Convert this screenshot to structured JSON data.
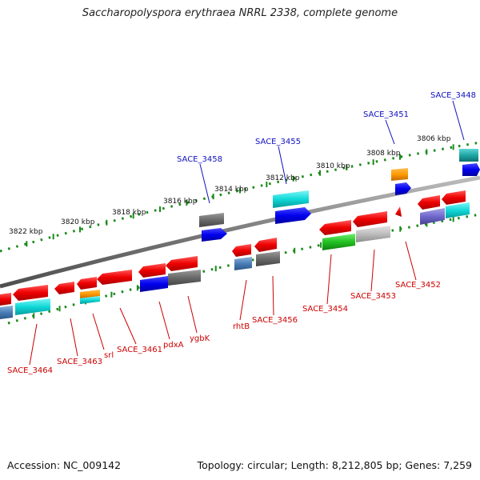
{
  "title": "Saccharopolyspora erythraea NRRL 2338, complete genome",
  "footer": {
    "accession": "Accession: NC_009142",
    "summary": "Topology: circular; Length: 8,212,805 bp; Genes: 7,259"
  },
  "colors": {
    "forward_label": "#1010c0",
    "reverse_label": "#cc0000",
    "ruler_tick": "#1a8a1a",
    "backbone": "#8c8c8c"
  },
  "ruler_labels": [
    "3806 kbp",
    "3808 kbp",
    "3810 kbp",
    "3812 kbp",
    "3814 kbp",
    "3816 kbp",
    "3818 kbp",
    "3820 kbp",
    "3822 kbp"
  ],
  "forward_gene_labels": [
    "SACE_3448",
    "SACE_3451",
    "SACE_3455",
    "SACE_3458"
  ],
  "reverse_gene_labels": [
    "SACE_3452",
    "SACE_3453",
    "SACE_3454",
    "SACE_3456",
    "rhtB",
    "ygbK",
    "pdxA",
    "SACE_3461",
    "srl",
    "SACE_3463",
    "SACE_3464"
  ]
}
